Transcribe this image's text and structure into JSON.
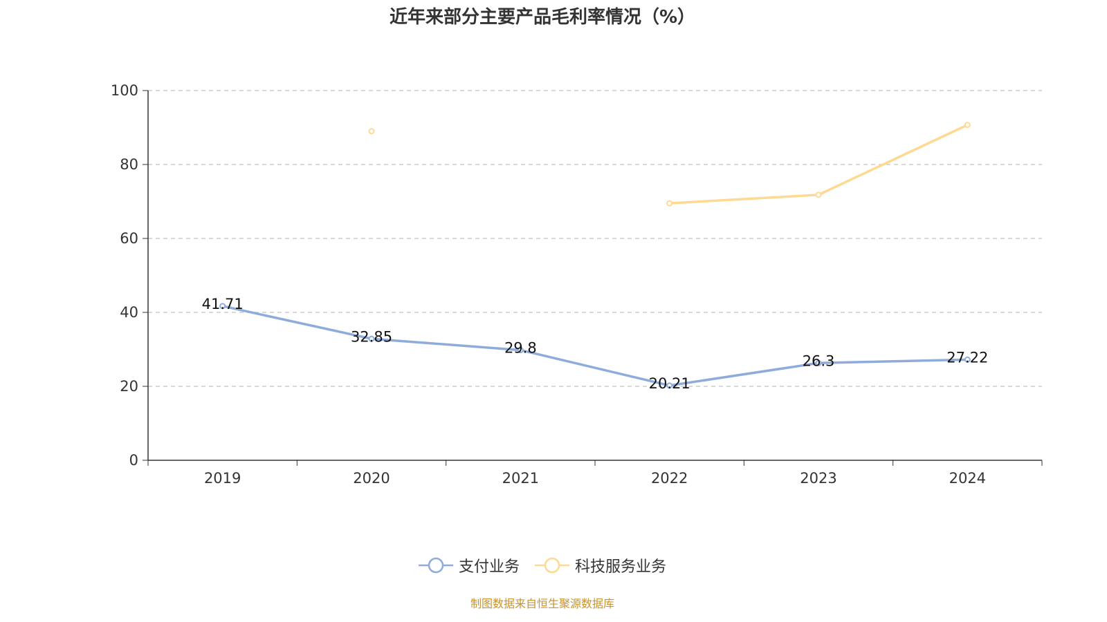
{
  "chart_data": {
    "type": "line",
    "title": "近年来部分主要产品毛利率情况（%）",
    "categories": [
      "2019",
      "2020",
      "2021",
      "2022",
      "2023",
      "2024"
    ],
    "ylim": [
      0,
      100
    ],
    "yticks": [
      "0",
      "20",
      "40",
      "60",
      "80",
      "100"
    ],
    "grid": true,
    "legend_position": "bottom",
    "series": [
      {
        "name": "支付业务",
        "color": "#8eabdb",
        "values": [
          41.71,
          32.85,
          29.8,
          20.21,
          26.3,
          27.22
        ],
        "labels": [
          "41.71",
          "32.85",
          "29.8",
          "20.21",
          "26.3",
          "27.22"
        ]
      },
      {
        "name": "科技服务业务",
        "color": "#ffd994",
        "values": [
          null,
          89.0,
          null,
          69.5,
          71.8,
          90.7
        ],
        "labels": []
      }
    ]
  },
  "source": "制图数据来自恒生聚源数据库"
}
